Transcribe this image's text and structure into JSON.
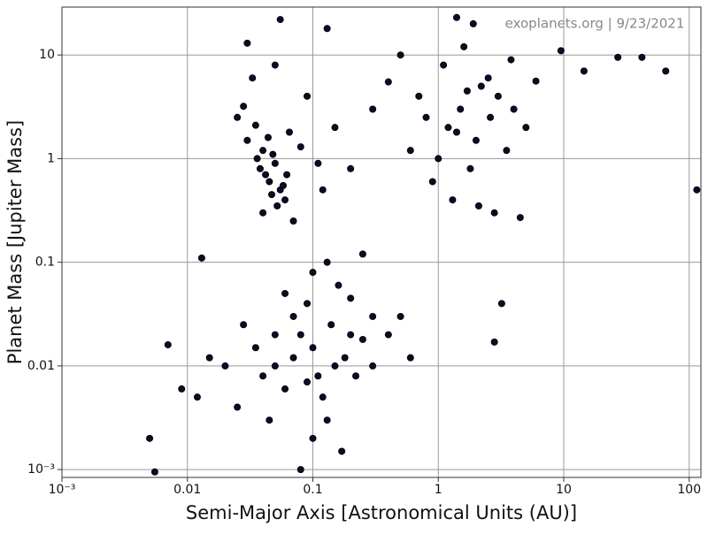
{
  "chart_data": {
    "type": "scatter",
    "annotation": "exoplanets.org | 9/23/2021",
    "x_label": "Semi-Major Axis [Astronomical Units (AU)]",
    "y_label": "Planet Mass [Jupiter Mass]",
    "x_scale": "log",
    "y_scale": "log",
    "grid": true,
    "color": "#0c0a24",
    "xlim": [
      0.001,
      124
    ],
    "ylim": [
      0.00084,
      29
    ],
    "xticks": [
      {
        "value": 0.001,
        "label": "10⁻³"
      },
      0.01,
      0.1,
      1,
      10,
      100
    ],
    "yticks": [
      {
        "value": 0.001,
        "label": "10⁻³"
      },
      0.01,
      0.1,
      1,
      10
    ],
    "x": [
      0.04,
      0.05,
      0.045,
      0.055,
      0.03,
      0.035,
      0.06,
      0.042,
      0.048,
      0.052,
      0.038,
      0.065,
      0.07,
      0.028,
      0.033,
      0.05,
      0.09,
      0.025,
      0.058,
      0.047,
      0.04,
      0.044,
      0.036,
      0.062,
      0.08,
      0.11,
      0.15,
      0.12,
      0.2,
      0.3,
      1.2,
      1.5,
      2,
      1,
      0.8,
      3,
      2.5,
      1.8,
      4,
      5,
      1.1,
      1.6,
      2.2,
      0.9,
      3.5,
      1.3,
      2.8,
      0.7,
      1.4,
      2.6,
      4.5,
      6,
      1.9,
      1.4,
      0.5,
      0.4,
      3.8,
      2.1,
      0.6,
      1.7,
      0.05,
      0.08,
      0.1,
      0.12,
      0.07,
      0.15,
      0.2,
      0.3,
      0.06,
      0.04,
      0.09,
      0.11,
      0.18,
      0.25,
      0.035,
      0.025,
      0.14,
      0.13,
      0.06,
      0.4,
      0.5,
      0.02,
      0.015,
      0.012,
      0.1,
      0.08,
      0.16,
      0.22,
      0.05,
      0.3,
      0.045,
      0.17,
      0.07,
      0.09,
      0.2,
      0.6,
      0.028,
      0.1,
      0.13,
      0.25,
      0.005,
      0.0055,
      0.013,
      0.007,
      0.009,
      0.055,
      0.13,
      0.03,
      14.5,
      27,
      42,
      65,
      115,
      3.2,
      2.8,
      9.5
    ],
    "values": [
      1.2,
      0.9,
      0.6,
      0.5,
      1.5,
      2.1,
      0.4,
      0.7,
      1.1,
      0.35,
      0.8,
      1.8,
      0.25,
      3.2,
      6,
      8,
      4,
      2.5,
      0.55,
      0.45,
      0.3,
      1.6,
      1.0,
      0.7,
      1.3,
      0.9,
      2,
      0.5,
      0.8,
      3,
      2,
      3,
      1.5,
      1,
      2.5,
      4,
      6,
      0.8,
      3,
      2,
      8,
      12,
      5,
      0.6,
      1.2,
      0.4,
      0.3,
      4,
      1.8,
      2.5,
      0.27,
      5.6,
      20,
      23,
      10,
      5.5,
      9,
      0.35,
      1.2,
      4.5,
      0.01,
      0.02,
      0.015,
      0.005,
      0.03,
      0.01,
      0.02,
      0.03,
      0.006,
      0.008,
      0.04,
      0.008,
      0.012,
      0.018,
      0.015,
      0.004,
      0.025,
      0.003,
      0.05,
      0.02,
      0.03,
      0.01,
      0.012,
      0.005,
      0.002,
      0.001,
      0.06,
      0.008,
      0.02,
      0.01,
      0.003,
      0.0015,
      0.012,
      0.007,
      0.045,
      0.012,
      0.025,
      0.08,
      0.1,
      0.12,
      0.002,
      0.00095,
      0.11,
      0.016,
      0.006,
      22,
      18,
      13,
      7,
      9.5,
      9.5,
      7,
      0.5,
      0.04,
      0.017,
      11
    ]
  }
}
